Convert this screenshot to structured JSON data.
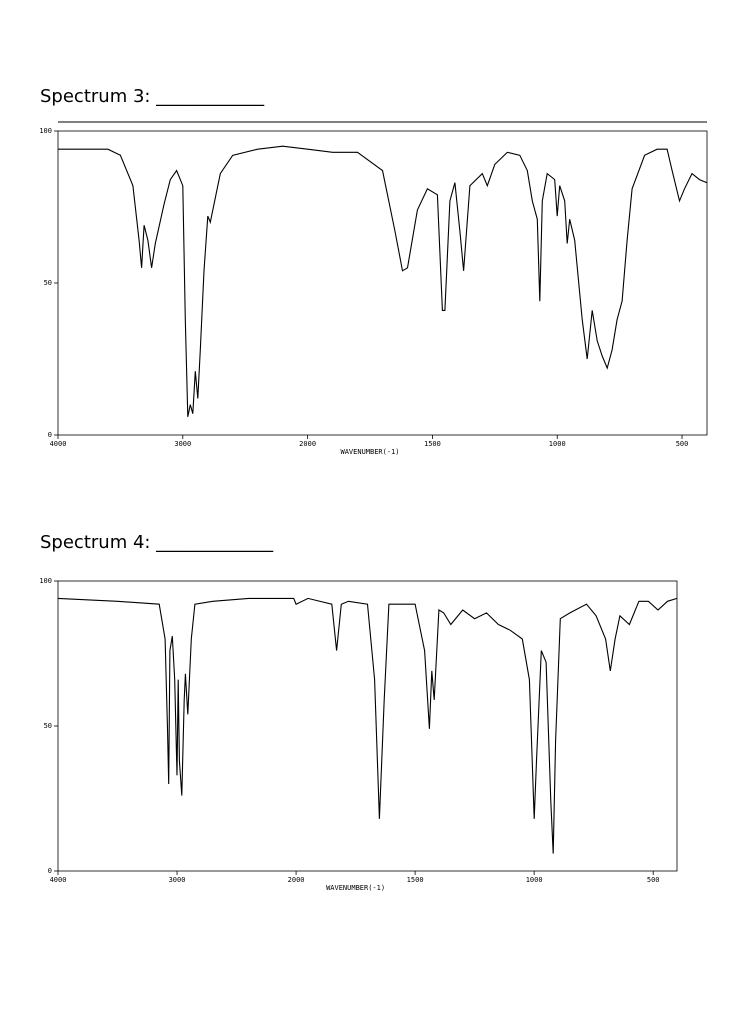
{
  "chart_data": [
    {
      "type": "line",
      "title": "Spectrum 3: ____________",
      "xlabel": "WAVENUMBER(-1)",
      "color": "#000000",
      "xlim": [
        4000,
        400
      ],
      "xbreak": 2000,
      "xticks": [
        4000,
        3000,
        2000,
        1500,
        1000,
        500
      ],
      "ylim": [
        0,
        100
      ],
      "yticks": [
        0,
        50,
        100
      ],
      "x": [
        4000,
        3600,
        3500,
        3400,
        3350,
        3330,
        3310,
        3280,
        3250,
        3220,
        3150,
        3100,
        3050,
        3000,
        2980,
        2960,
        2940,
        2920,
        2900,
        2880,
        2860,
        2830,
        2800,
        2780,
        2700,
        2600,
        2400,
        2200,
        2000,
        1900,
        1800,
        1700,
        1650,
        1620,
        1600,
        1560,
        1520,
        1480,
        1460,
        1450,
        1430,
        1410,
        1390,
        1375,
        1350,
        1300,
        1280,
        1250,
        1200,
        1150,
        1120,
        1100,
        1080,
        1070,
        1060,
        1040,
        1010,
        1000,
        990,
        970,
        960,
        950,
        930,
        900,
        880,
        860,
        840,
        820,
        800,
        780,
        760,
        740,
        720,
        700,
        650,
        600,
        560,
        540,
        510,
        490,
        460,
        430,
        400
      ],
      "values": [
        94,
        94,
        92,
        82,
        64,
        55,
        69,
        64,
        55,
        63,
        76,
        84,
        87,
        82,
        38,
        6,
        10,
        7,
        21,
        12,
        28,
        54,
        72,
        70,
        86,
        92,
        94,
        95,
        94,
        93,
        93,
        87,
        67,
        54,
        55,
        74,
        81,
        79,
        41,
        41,
        77,
        83,
        67,
        54,
        82,
        86,
        82,
        89,
        93,
        92,
        87,
        77,
        71,
        44,
        77,
        86,
        84,
        72,
        82,
        77,
        63,
        71,
        64,
        38,
        25,
        41,
        31,
        26,
        22,
        28,
        38,
        44,
        64,
        81,
        92,
        94,
        94,
        87,
        77,
        81,
        86,
        84,
        83
      ]
    },
    {
      "type": "line",
      "title": "Spectrum 4: _____________",
      "xlabel": "WAVENUMBER(-1)",
      "color": "#000000",
      "xlim": [
        4000,
        400
      ],
      "xbreak": 2000,
      "xticks": [
        4000,
        3000,
        2000,
        1500,
        1000,
        500
      ],
      "ylim": [
        0,
        100
      ],
      "yticks": [
        0,
        50,
        100
      ],
      "x": [
        4000,
        3500,
        3150,
        3100,
        3080,
        3070,
        3060,
        3040,
        3020,
        3000,
        2990,
        2980,
        2960,
        2940,
        2930,
        2910,
        2880,
        2850,
        2700,
        2400,
        2100,
        2020,
        2000,
        1950,
        1850,
        1830,
        1810,
        1780,
        1700,
        1670,
        1650,
        1630,
        1610,
        1500,
        1460,
        1440,
        1430,
        1420,
        1400,
        1380,
        1350,
        1300,
        1250,
        1200,
        1150,
        1100,
        1050,
        1020,
        1000,
        990,
        970,
        950,
        930,
        920,
        910,
        890,
        850,
        780,
        740,
        700,
        680,
        660,
        640,
        600,
        560,
        520,
        480,
        440,
        400
      ],
      "values": [
        94,
        93,
        92,
        80,
        49,
        30,
        76,
        81,
        66,
        33,
        66,
        38,
        26,
        59,
        68,
        54,
        80,
        92,
        93,
        94,
        94,
        94,
        92,
        94,
        92,
        76,
        92,
        93,
        92,
        66,
        18,
        59,
        92,
        92,
        76,
        49,
        69,
        59,
        90,
        89,
        85,
        90,
        87,
        89,
        85,
        83,
        80,
        66,
        18,
        38,
        76,
        72,
        24,
        6,
        45,
        87,
        89,
        92,
        88,
        80,
        69,
        80,
        88,
        85,
        93,
        93,
        90,
        93,
        94
      ]
    }
  ]
}
